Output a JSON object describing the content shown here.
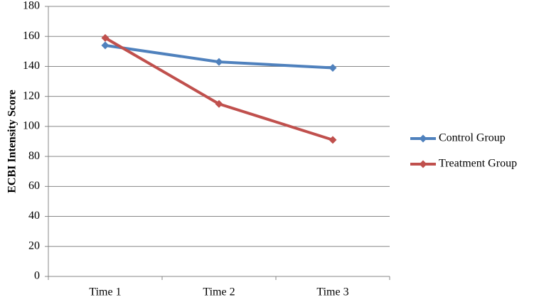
{
  "chart_data": {
    "type": "line",
    "y_label": "ECBI Intensity Score",
    "categories": [
      "Time 1",
      "Time 2",
      "Time 3"
    ],
    "series": [
      {
        "name": "Control Group",
        "color": "#4f81bd",
        "values": [
          154,
          143,
          139
        ]
      },
      {
        "name": "Treatment Group",
        "color": "#c0504d",
        "values": [
          159,
          115,
          91
        ]
      }
    ],
    "ylim": [
      0,
      180
    ],
    "yticks": [
      0,
      20,
      40,
      60,
      80,
      100,
      120,
      140,
      160,
      180
    ],
    "grid": true,
    "legend": "right"
  }
}
